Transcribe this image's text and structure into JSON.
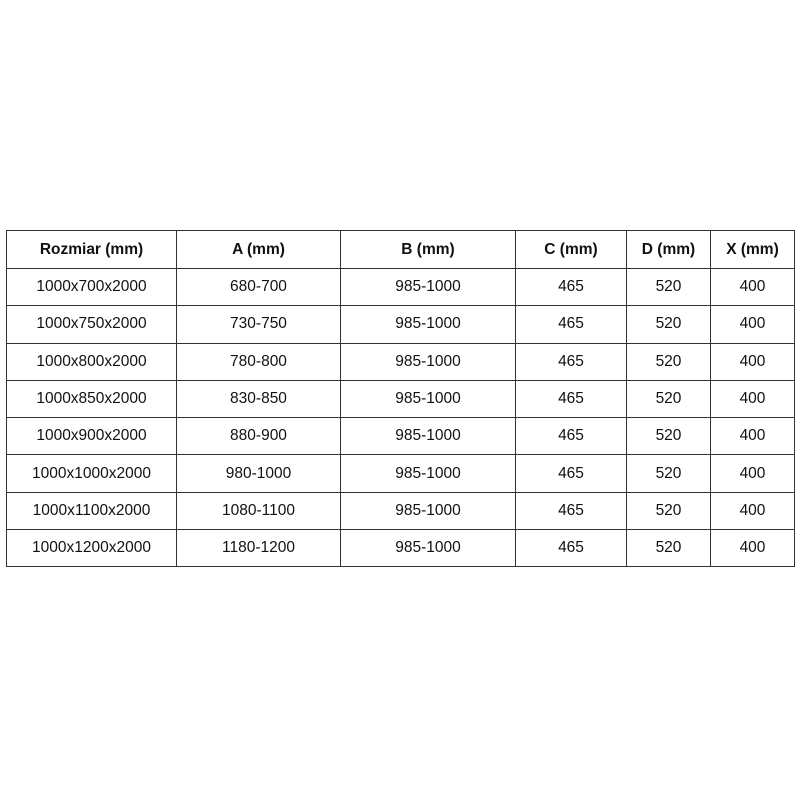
{
  "table": {
    "headers": [
      "Rozmiar (mm)",
      "A (mm)",
      "B (mm)",
      "C (mm)",
      "D (mm)",
      "X (mm)"
    ],
    "rows": [
      [
        "1000x700x2000",
        "680-700",
        "985-1000",
        "465",
        "520",
        "400"
      ],
      [
        "1000x750x2000",
        "730-750",
        "985-1000",
        "465",
        "520",
        "400"
      ],
      [
        "1000x800x2000",
        "780-800",
        "985-1000",
        "465",
        "520",
        "400"
      ],
      [
        "1000x850x2000",
        "830-850",
        "985-1000",
        "465",
        "520",
        "400"
      ],
      [
        "1000x900x2000",
        "880-900",
        "985-1000",
        "465",
        "520",
        "400"
      ],
      [
        "1000x1000x2000",
        "980-1000",
        "985-1000",
        "465",
        "520",
        "400"
      ],
      [
        "1000x1100x2000",
        "1080-1100",
        "985-1000",
        "465",
        "520",
        "400"
      ],
      [
        "1000x1200x2000",
        "1180-1200",
        "985-1000",
        "465",
        "520",
        "400"
      ]
    ]
  }
}
